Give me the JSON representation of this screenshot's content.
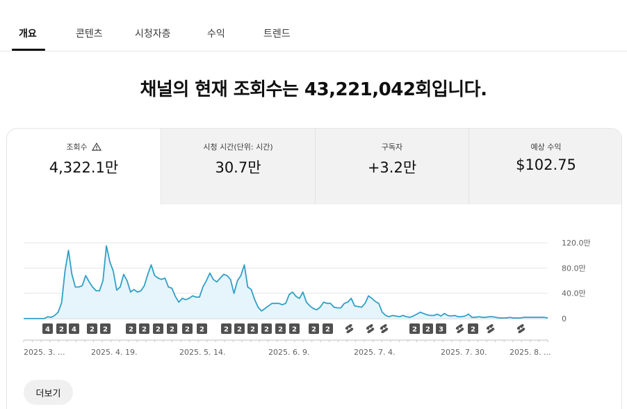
{
  "tabs": [
    {
      "label": "개요",
      "active": true
    },
    {
      "label": "콘텐츠",
      "active": false
    },
    {
      "label": "시청자층",
      "active": false
    },
    {
      "label": "수익",
      "active": false
    },
    {
      "label": "트렌드",
      "active": false
    }
  ],
  "headline": "채널의 현재 조회수는 43,221,042회입니다.",
  "metrics": [
    {
      "label": "조회수",
      "value": "4,322.1만",
      "icon": "warning-icon"
    },
    {
      "label": "시청 시간(단위: 시간)",
      "value": "30.7만"
    },
    {
      "label": "구독자",
      "value": "+3.2만"
    },
    {
      "label": "예상 수익",
      "value": "$102.75"
    }
  ],
  "more_label": "더보기",
  "colors": {
    "line": "#2f9fc7",
    "fill": "#e6f4fb",
    "marker": "#505050"
  },
  "chart_data": {
    "type": "area",
    "y_ticks": [
      "120.0만",
      "80.0만",
      "40.0만",
      "0"
    ],
    "ylim": [
      0,
      120
    ],
    "x_labels": [
      "2025. 3. ...",
      "2025. 4. 19.",
      "2025. 5. 14.",
      "2025. 6. 9.",
      "2025. 7. 4.",
      "2025. 7. 30.",
      "2025. 8. ..."
    ],
    "grid": true,
    "values": [
      0,
      0,
      0,
      0,
      0,
      0,
      0,
      3,
      2,
      5,
      10,
      25,
      75,
      108,
      70,
      50,
      50,
      52,
      68,
      58,
      50,
      44,
      44,
      60,
      115,
      90,
      75,
      45,
      50,
      70,
      60,
      42,
      46,
      42,
      44,
      52,
      70,
      85,
      68,
      64,
      62,
      64,
      50,
      48,
      35,
      26,
      32,
      30,
      32,
      36,
      34,
      34,
      50,
      60,
      72,
      62,
      58,
      64,
      70,
      68,
      62,
      40,
      60,
      68,
      85,
      50,
      46,
      30,
      18,
      12,
      16,
      20,
      24,
      24,
      24,
      22,
      24,
      38,
      42,
      35,
      32,
      42,
      26,
      20,
      16,
      14,
      18,
      26,
      24,
      24,
      18,
      17,
      17,
      24,
      26,
      32,
      20,
      19,
      18,
      24,
      36,
      32,
      27,
      24,
      10,
      5,
      3,
      5,
      4,
      3,
      5,
      3,
      2,
      4,
      7,
      10,
      8,
      6,
      5,
      5,
      7,
      4,
      8,
      5,
      4,
      5,
      3,
      3,
      4,
      7,
      2,
      2,
      3,
      2,
      2,
      3,
      3,
      2,
      1,
      1,
      1,
      2,
      1,
      1,
      1,
      2,
      2,
      2,
      2,
      2,
      2,
      2,
      1
    ],
    "markers": [
      "4",
      "2",
      "4",
      "2",
      "2",
      "2",
      "2",
      "2",
      "2",
      "2",
      "2",
      "2",
      "2",
      "2",
      "2",
      "2",
      "2",
      "2",
      "2",
      "S",
      "S",
      "S",
      "2",
      "2",
      "3",
      "S",
      "2",
      "S",
      "S"
    ]
  }
}
